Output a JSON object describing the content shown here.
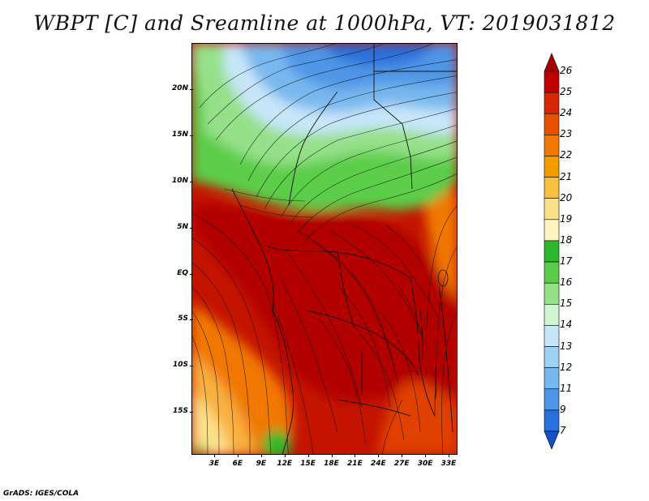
{
  "title": "WBPT [C] and Sreamline at 1000hPa, VT: 2019031812",
  "variable": "WBPT [C]",
  "level": "1000hPa",
  "valid_time": "2019031812",
  "credit": "GrADS: IGES/COLA",
  "lat_labels": [
    "20N",
    "15N",
    "10N",
    "5N",
    "EQ",
    "5S",
    "10S",
    "15S"
  ],
  "lon_labels": [
    "3E",
    "6E",
    "9E",
    "12E",
    "15E",
    "18E",
    "21E",
    "24E",
    "27E",
    "30E",
    "33E"
  ],
  "colorbar": {
    "labels": [
      "26",
      "25",
      "24",
      "23",
      "22",
      "21",
      "20",
      "19",
      "18",
      "17",
      "16",
      "15",
      "14",
      "13",
      "12",
      "11",
      "9",
      "7"
    ],
    "colors": [
      "#a50000",
      "#c00000",
      "#d62800",
      "#e85000",
      "#f07800",
      "#f59b00",
      "#f8c040",
      "#fbe08a",
      "#fff4c0",
      "#2db82d",
      "#5ccd4a",
      "#96e08a",
      "#d2f4d0",
      "#c8e6fa",
      "#9fd0f5",
      "#78b8ee",
      "#5096e6",
      "#2a6fdb",
      "#1450c8"
    ]
  }
}
